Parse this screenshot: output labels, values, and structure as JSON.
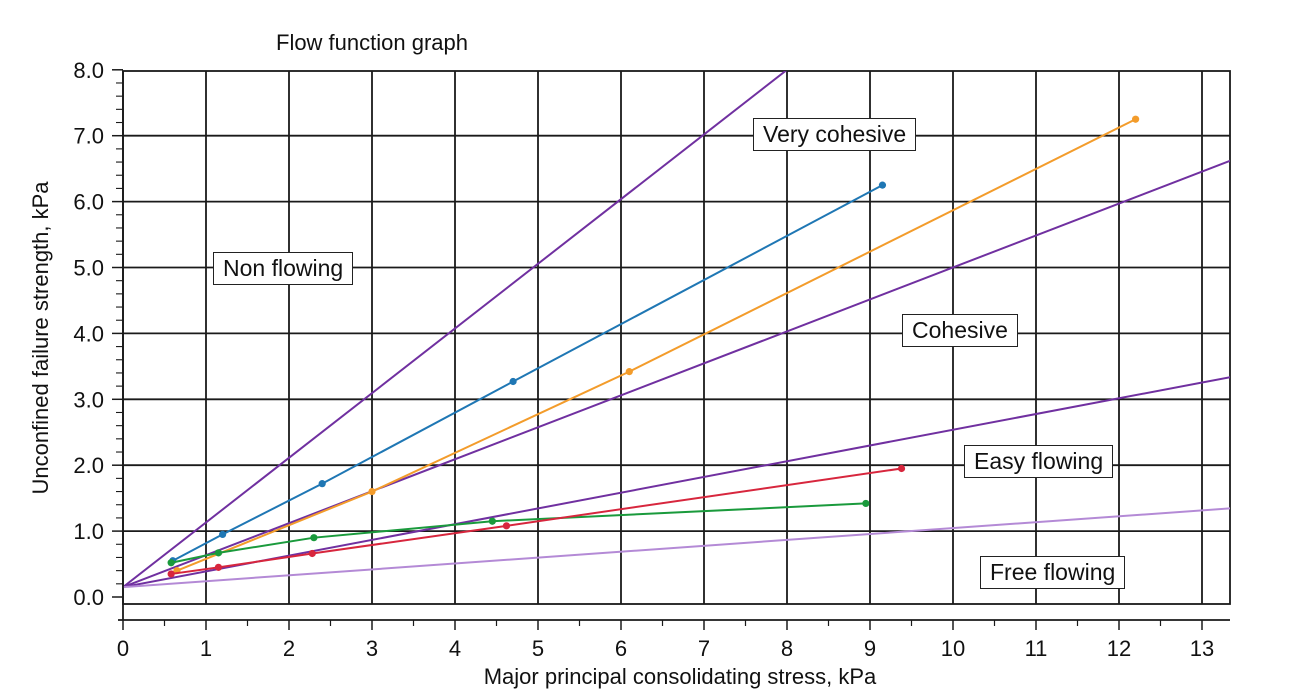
{
  "chart_data": {
    "type": "line",
    "title": "Flow function graph",
    "xlabel": "Major principal consolidating stress, kPa",
    "ylabel": "Unconfined failure strength, kPa",
    "xlim": [
      0,
      13.4
    ],
    "ylim": [
      0,
      8.0
    ],
    "x_ticks": [
      "0",
      "1",
      "2",
      "3",
      "4",
      "5",
      "6",
      "7",
      "8",
      "9",
      "10",
      "11",
      "12",
      "13"
    ],
    "y_ticks": [
      "0.0",
      "1.0",
      "2.0",
      "3.0",
      "4.0",
      "5.0",
      "6.0",
      "7.0",
      "8.0"
    ],
    "grid": true,
    "region_labels": [
      {
        "text": "Non flowing"
      },
      {
        "text": "Very cohesive"
      },
      {
        "text": "Cohesive"
      },
      {
        "text": "Easy flowing"
      },
      {
        "text": "Free flowing"
      }
    ],
    "boundary_lines": [
      {
        "color": "#7030a0",
        "x": [
          0,
          8.0
        ],
        "y": [
          0.15,
          8.0
        ]
      },
      {
        "color": "#7030a0",
        "x": [
          0,
          13.4
        ],
        "y": [
          0.15,
          6.65
        ]
      },
      {
        "color": "#7030a0",
        "x": [
          0,
          13.4
        ],
        "y": [
          0.15,
          3.35
        ]
      },
      {
        "color": "#b48ad6",
        "x": [
          0,
          13.4
        ],
        "y": [
          0.15,
          1.35
        ]
      }
    ],
    "series": [
      {
        "color": "#1f77b4",
        "x": [
          0.6,
          1.2,
          2.4,
          4.7,
          9.15
        ],
        "y": [
          0.55,
          0.95,
          1.72,
          3.27,
          6.25
        ]
      },
      {
        "color": "#f39c2b",
        "x": [
          0.65,
          3.0,
          6.1,
          12.2
        ],
        "y": [
          0.4,
          1.6,
          3.42,
          7.25
        ]
      },
      {
        "color": "#1a9a3c",
        "x": [
          0.58,
          1.15,
          2.3,
          4.45,
          8.95
        ],
        "y": [
          0.52,
          0.67,
          0.9,
          1.15,
          1.42
        ]
      },
      {
        "color": "#d7263d",
        "x": [
          0.58,
          1.15,
          2.28,
          4.62,
          9.38
        ],
        "y": [
          0.35,
          0.45,
          0.66,
          1.08,
          1.95
        ]
      }
    ]
  }
}
